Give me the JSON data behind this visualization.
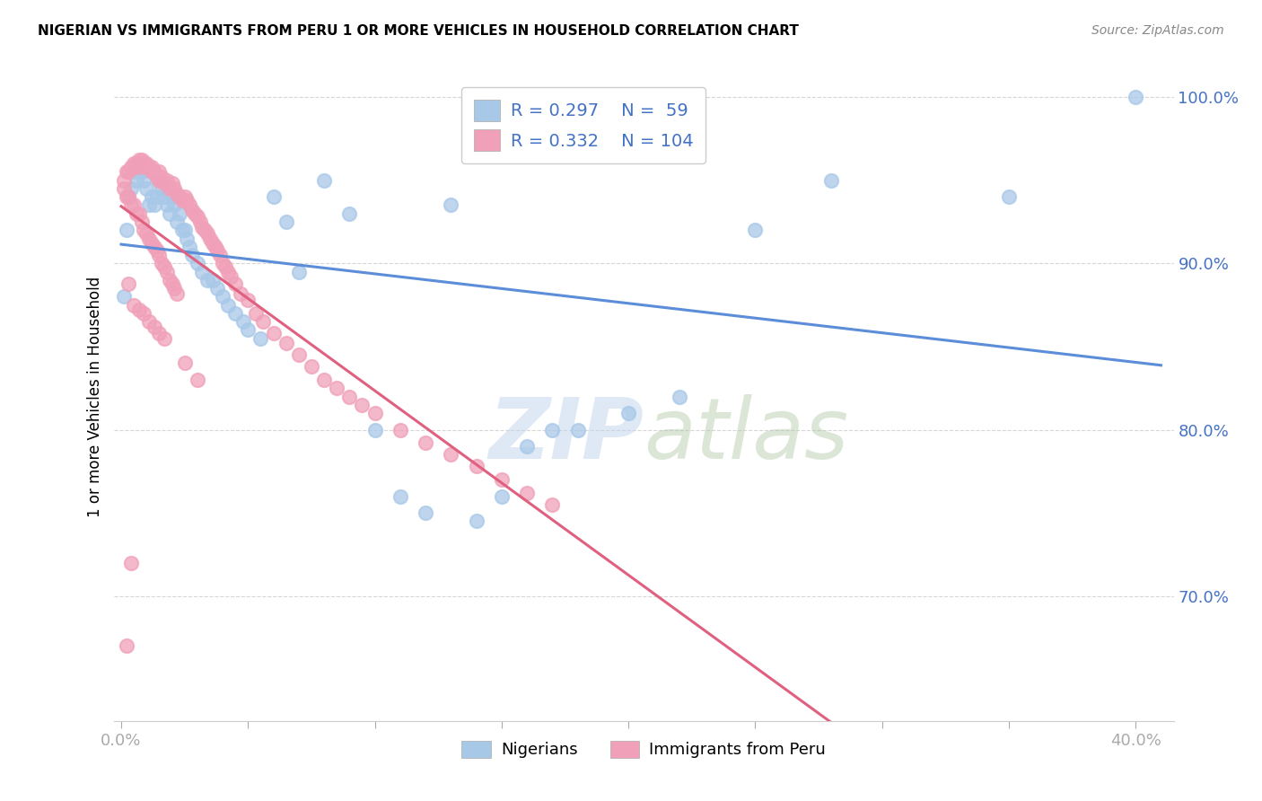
{
  "title": "NIGERIAN VS IMMIGRANTS FROM PERU 1 OR MORE VEHICLES IN HOUSEHOLD CORRELATION CHART",
  "source": "Source: ZipAtlas.com",
  "ylabel": "1 or more Vehicles in Household",
  "ylim": [
    0.625,
    1.015
  ],
  "xlim": [
    -0.003,
    0.415
  ],
  "yticks": [
    0.7,
    0.8,
    0.9,
    1.0
  ],
  "ytick_labels": [
    "70.0%",
    "80.0%",
    "90.0%",
    "100.0%"
  ],
  "xtick_positions": [
    0.0,
    0.05,
    0.1,
    0.15,
    0.2,
    0.25,
    0.3,
    0.35,
    0.4
  ],
  "legend_R_blue": "0.297",
  "legend_N_blue": "59",
  "legend_R_pink": "0.332",
  "legend_N_pink": "104",
  "legend_label_blue": "Nigerians",
  "legend_label_pink": "Immigrants from Peru",
  "blue_color": "#A8C8E8",
  "pink_color": "#F0A0B8",
  "blue_line_color": "#5B8DD9",
  "pink_line_color": "#E06080",
  "watermark_zip": "ZIP",
  "watermark_atlas": "atlas",
  "nigerians_x": [
    0.001,
    0.002,
    0.003,
    0.004,
    0.005,
    0.006,
    0.007,
    0.008,
    0.009,
    0.01,
    0.011,
    0.012,
    0.013,
    0.014,
    0.015,
    0.016,
    0.017,
    0.018,
    0.019,
    0.02,
    0.021,
    0.022,
    0.023,
    0.024,
    0.025,
    0.026,
    0.027,
    0.028,
    0.03,
    0.032,
    0.034,
    0.036,
    0.038,
    0.04,
    0.042,
    0.045,
    0.048,
    0.05,
    0.055,
    0.06,
    0.065,
    0.07,
    0.08,
    0.09,
    0.1,
    0.11,
    0.12,
    0.13,
    0.14,
    0.15,
    0.16,
    0.17,
    0.18,
    0.2,
    0.22,
    0.25,
    0.28,
    0.35,
    0.4
  ],
  "nigerians_y": [
    0.88,
    0.92,
    0.94,
    0.945,
    0.955,
    0.95,
    0.96,
    0.955,
    0.95,
    0.945,
    0.935,
    0.94,
    0.935,
    0.94,
    0.95,
    0.945,
    0.94,
    0.935,
    0.93,
    0.94,
    0.935,
    0.925,
    0.93,
    0.92,
    0.92,
    0.915,
    0.91,
    0.905,
    0.9,
    0.895,
    0.89,
    0.89,
    0.885,
    0.88,
    0.875,
    0.87,
    0.865,
    0.86,
    0.855,
    0.94,
    0.925,
    0.895,
    0.95,
    0.93,
    0.8,
    0.76,
    0.75,
    0.935,
    0.745,
    0.76,
    0.79,
    0.8,
    0.8,
    0.81,
    0.82,
    0.92,
    0.95,
    0.94,
    1.0
  ],
  "peru_x": [
    0.001,
    0.002,
    0.003,
    0.004,
    0.005,
    0.005,
    0.006,
    0.007,
    0.007,
    0.008,
    0.008,
    0.009,
    0.01,
    0.01,
    0.011,
    0.012,
    0.012,
    0.013,
    0.014,
    0.015,
    0.015,
    0.016,
    0.017,
    0.018,
    0.019,
    0.02,
    0.021,
    0.022,
    0.023,
    0.024,
    0.025,
    0.026,
    0.027,
    0.028,
    0.029,
    0.03,
    0.031,
    0.032,
    0.033,
    0.034,
    0.035,
    0.036,
    0.037,
    0.038,
    0.039,
    0.04,
    0.041,
    0.042,
    0.043,
    0.045,
    0.047,
    0.05,
    0.053,
    0.056,
    0.06,
    0.065,
    0.07,
    0.075,
    0.08,
    0.085,
    0.09,
    0.095,
    0.1,
    0.11,
    0.12,
    0.13,
    0.14,
    0.15,
    0.16,
    0.17,
    0.001,
    0.002,
    0.003,
    0.004,
    0.005,
    0.006,
    0.007,
    0.008,
    0.009,
    0.01,
    0.011,
    0.012,
    0.013,
    0.014,
    0.015,
    0.016,
    0.017,
    0.018,
    0.019,
    0.02,
    0.021,
    0.022,
    0.003,
    0.005,
    0.007,
    0.009,
    0.011,
    0.013,
    0.015,
    0.017,
    0.025,
    0.03,
    0.002,
    0.004
  ],
  "peru_y": [
    0.95,
    0.955,
    0.955,
    0.958,
    0.96,
    0.958,
    0.96,
    0.962,
    0.958,
    0.96,
    0.962,
    0.96,
    0.96,
    0.958,
    0.958,
    0.955,
    0.958,
    0.955,
    0.952,
    0.955,
    0.95,
    0.952,
    0.948,
    0.95,
    0.945,
    0.948,
    0.945,
    0.942,
    0.94,
    0.938,
    0.94,
    0.938,
    0.935,
    0.932,
    0.93,
    0.928,
    0.925,
    0.922,
    0.92,
    0.918,
    0.915,
    0.912,
    0.91,
    0.908,
    0.905,
    0.9,
    0.898,
    0.895,
    0.892,
    0.888,
    0.882,
    0.878,
    0.87,
    0.865,
    0.858,
    0.852,
    0.845,
    0.838,
    0.83,
    0.825,
    0.82,
    0.815,
    0.81,
    0.8,
    0.792,
    0.785,
    0.778,
    0.77,
    0.762,
    0.755,
    0.945,
    0.94,
    0.94,
    0.935,
    0.935,
    0.93,
    0.93,
    0.925,
    0.92,
    0.918,
    0.915,
    0.912,
    0.91,
    0.908,
    0.905,
    0.9,
    0.898,
    0.895,
    0.89,
    0.888,
    0.885,
    0.882,
    0.888,
    0.875,
    0.872,
    0.87,
    0.865,
    0.862,
    0.858,
    0.855,
    0.84,
    0.83,
    0.67,
    0.72
  ]
}
